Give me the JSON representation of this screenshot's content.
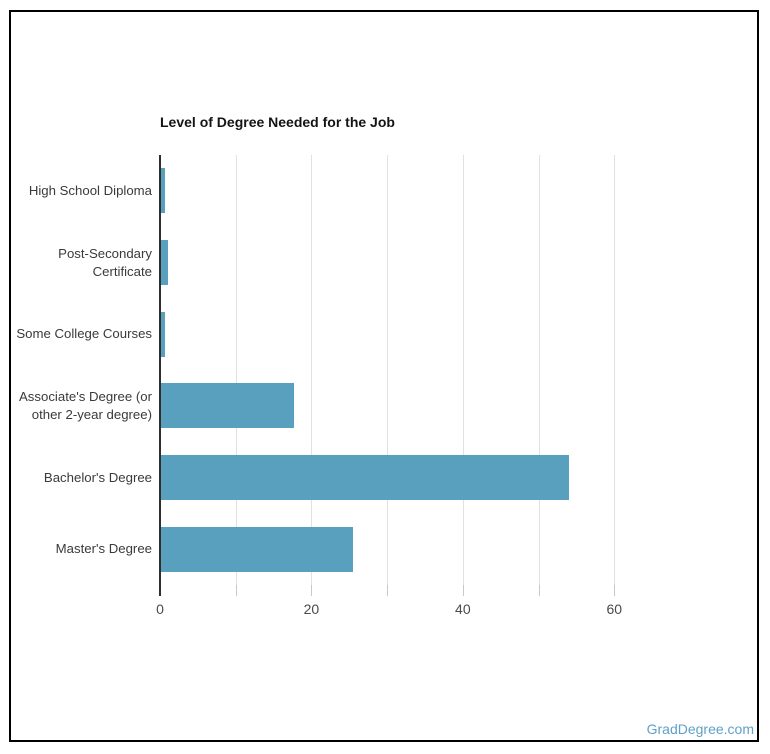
{
  "title": "Level of Degree Needed for the Job",
  "watermark": "GradDegree.com",
  "colors": {
    "bar": "#599fbe",
    "axis": "#2e2e2e",
    "gridline": "#e1e1e1",
    "tick": "#c9c9c9",
    "watermark_text": "#5ea1c8",
    "frame_border": "#000000"
  },
  "chart_data": {
    "type": "bar",
    "orientation": "horizontal",
    "title": "Level of Degree Needed for the Job",
    "categories": [
      "High School Diploma",
      "Post-Secondary Certificate",
      "Some College Courses",
      "Associate's Degree (or other 2-year degree)",
      "Bachelor's Degree",
      "Master's Degree"
    ],
    "category_label_lines": [
      [
        "High School Diploma"
      ],
      [
        "Post-Secondary",
        "Certificate"
      ],
      [
        "Some College Courses"
      ],
      [
        "Associate's Degree (or",
        "other 2-year degree)"
      ],
      [
        "Bachelor's Degree"
      ],
      [
        "Master's Degree"
      ]
    ],
    "values": [
      0.6,
      1.1,
      0.6,
      17.7,
      54,
      25.5
    ],
    "xlabel": "",
    "ylabel": "",
    "xlim": [
      0,
      70
    ],
    "x_ticks": [
      0,
      20,
      40,
      60
    ],
    "gridline_step": 10,
    "grid_on": true,
    "legend": "none",
    "bar_color": "#599fbe"
  }
}
